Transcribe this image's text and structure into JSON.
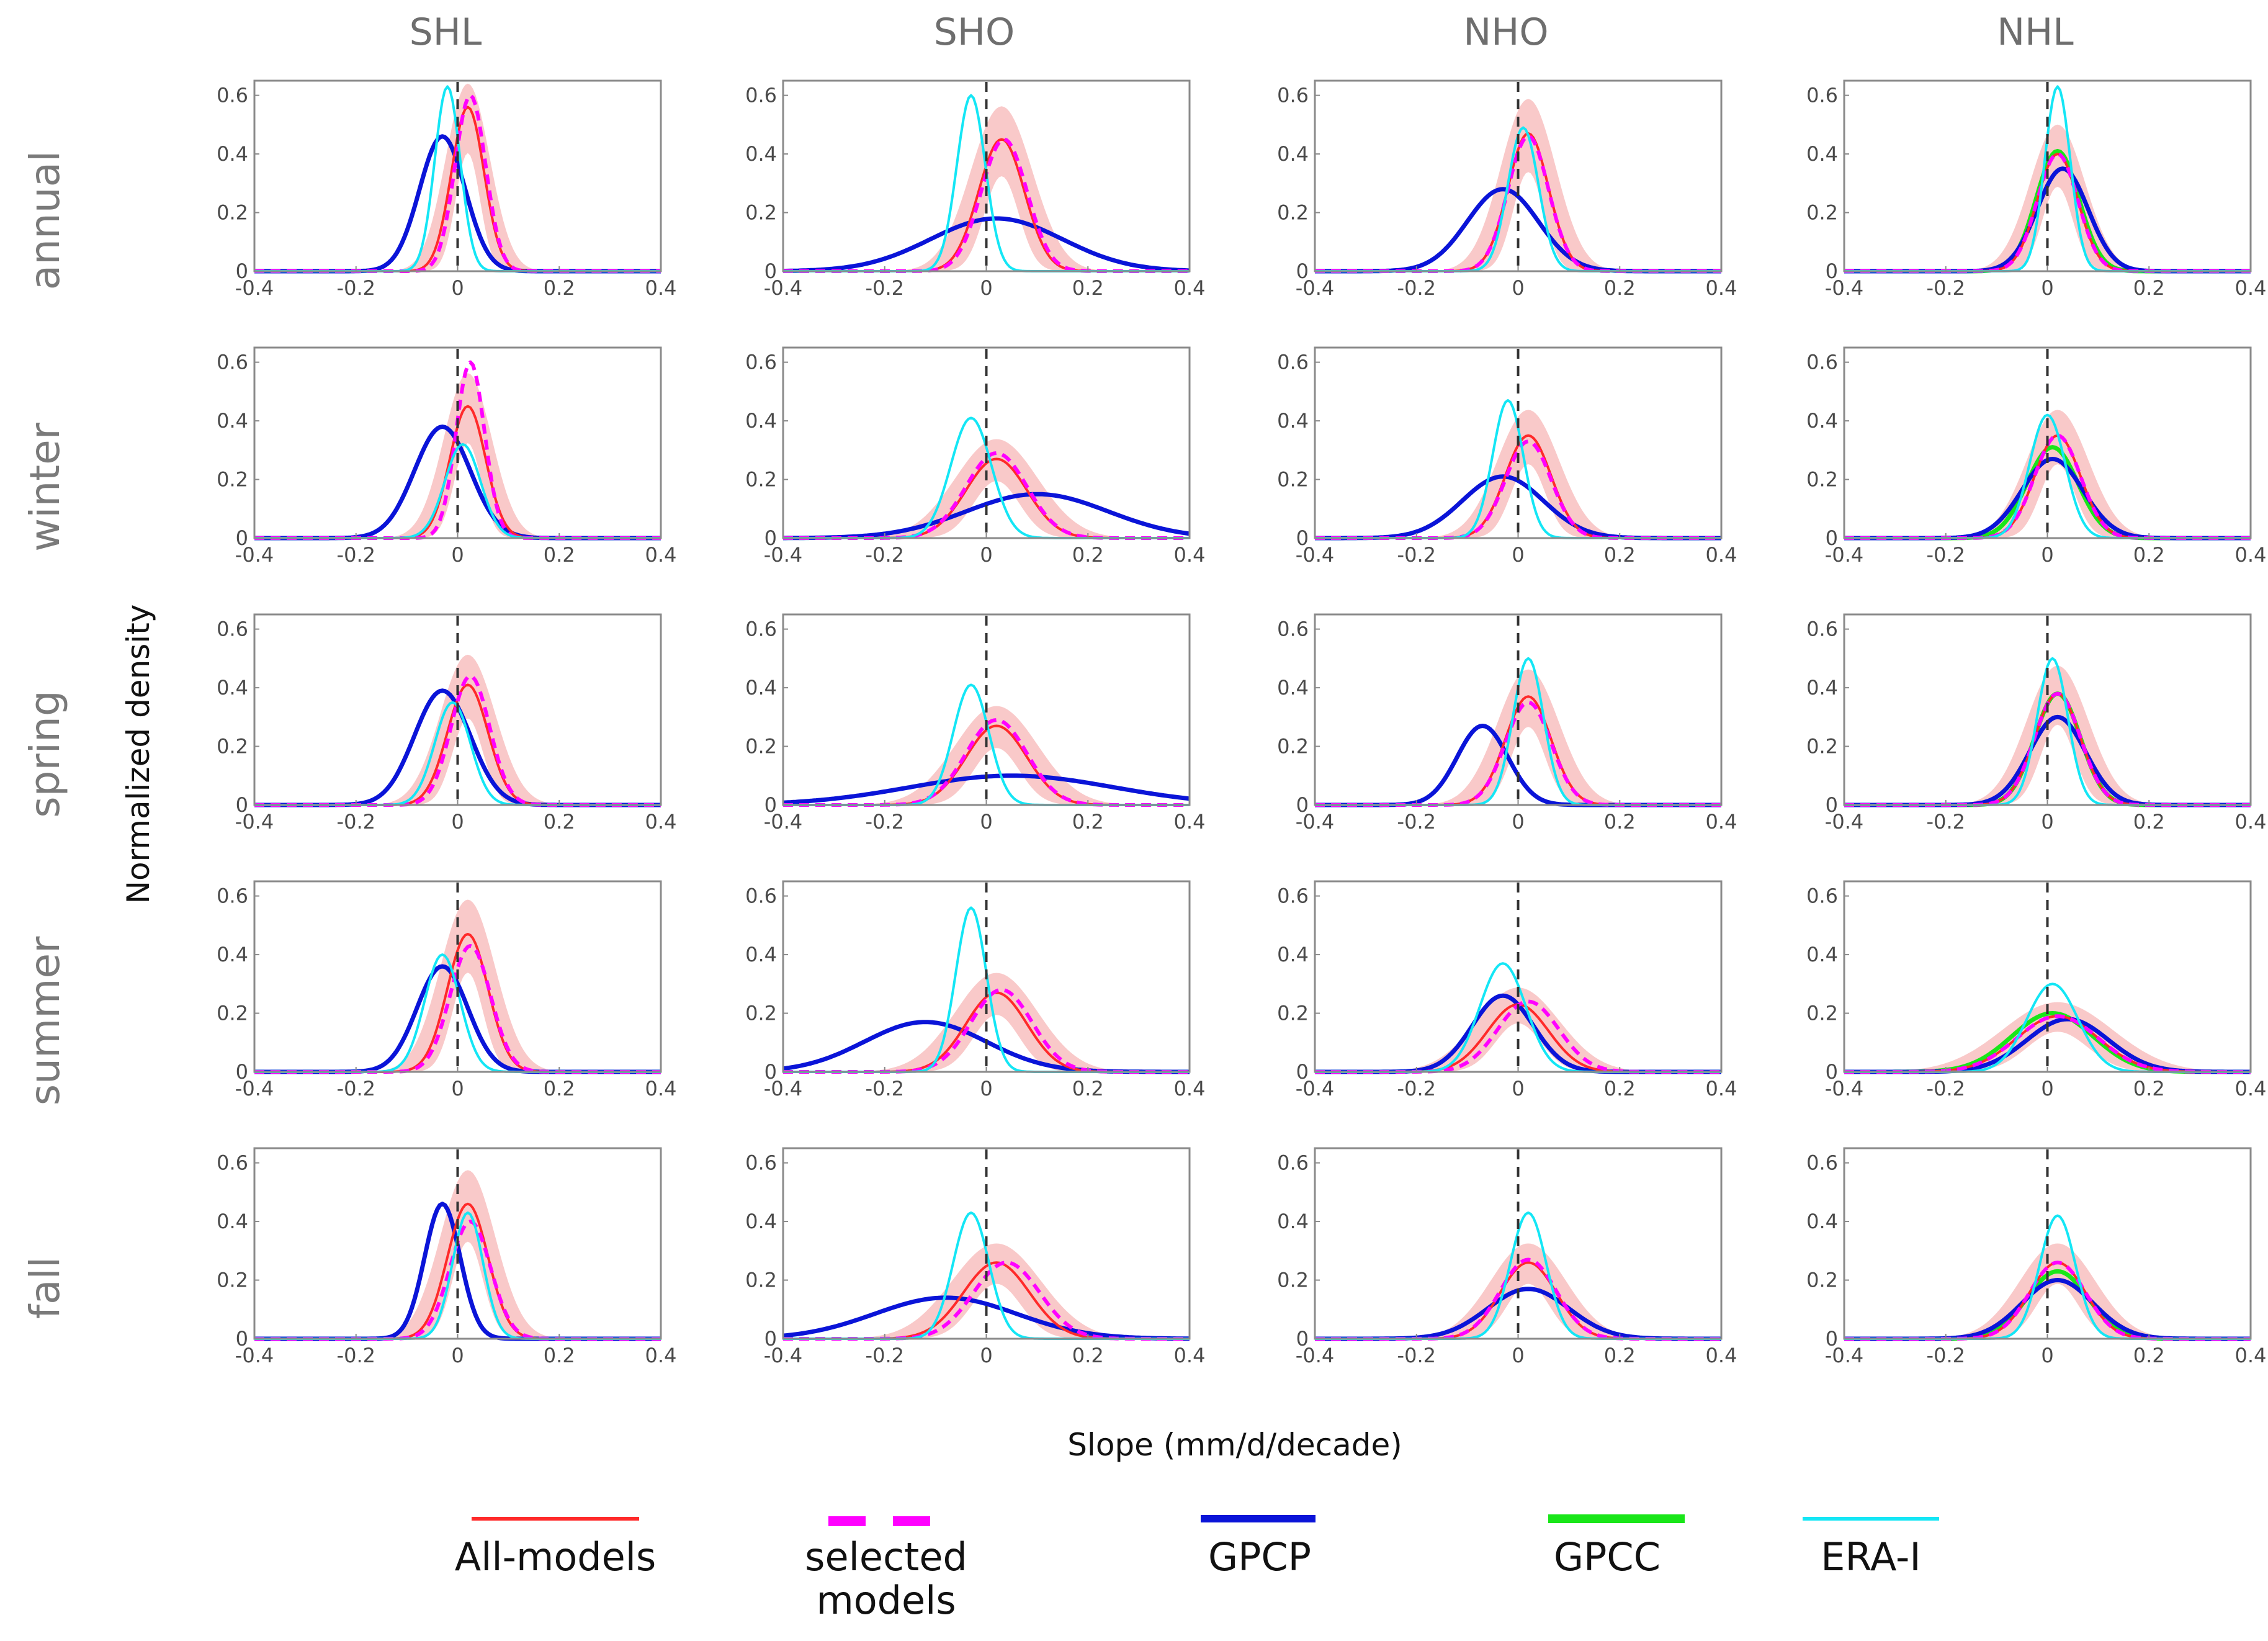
{
  "chart_data": {
    "type": "line",
    "columns": [
      "SHL",
      "SHO",
      "NHO",
      "NHL"
    ],
    "rows": [
      "annual",
      "winter",
      "spring",
      "summer",
      "fall"
    ],
    "xlabel": "Slope (mm/d/decade)",
    "ylabel": "Normalized density",
    "xlim": [
      -0.4,
      0.4
    ],
    "ylim": [
      0,
      0.65
    ],
    "xticks": [
      -0.4,
      -0.2,
      0,
      0.2,
      0.4
    ],
    "yticks": [
      0,
      0.2,
      0.4,
      0.6
    ],
    "xtick_labels": [
      "-0.4",
      "-0.2",
      "0",
      "0.2",
      "0.4"
    ],
    "ytick_labels": [
      "0",
      "0.2",
      "0.4",
      "0.6"
    ],
    "reference_line": {
      "x": 0,
      "style": "dashed"
    },
    "series_styles": [
      {
        "key": "all",
        "name": "All-models",
        "color": "#ff2a2a",
        "style": "solid"
      },
      {
        "key": "sel",
        "name": "selected models",
        "color": "#ff00ff",
        "style": "dashed"
      },
      {
        "key": "gpcp",
        "name": "GPCP",
        "color": "#0a14d8",
        "style": "solid"
      },
      {
        "key": "gpcc",
        "name": "GPCC",
        "color": "#19e619",
        "style": "solid"
      },
      {
        "key": "era",
        "name": "ERA-I",
        "color": "#14e6f5",
        "style": "solid"
      },
      {
        "key": "band",
        "name": "All-models spread",
        "color": "#f7b7b7",
        "style": "band"
      }
    ],
    "panels": [
      {
        "col": "SHL",
        "row": "annual",
        "series": [
          {
            "key": "all",
            "peak_x": 0.02,
            "peak": 0.56,
            "width": 0.032
          },
          {
            "key": "sel",
            "peak_x": 0.025,
            "peak": 0.6,
            "width": 0.03
          },
          {
            "key": "gpcp",
            "peak_x": -0.03,
            "peak": 0.46,
            "width": 0.045
          },
          {
            "key": "era",
            "peak_x": -0.02,
            "peak": 0.63,
            "width": 0.025
          }
        ]
      },
      {
        "col": "SHO",
        "row": "annual",
        "series": [
          {
            "key": "all",
            "peak_x": 0.03,
            "peak": 0.45,
            "width": 0.045
          },
          {
            "key": "sel",
            "peak_x": 0.035,
            "peak": 0.45,
            "width": 0.045
          },
          {
            "key": "gpcp",
            "peak_x": 0.02,
            "peak": 0.18,
            "width": 0.13
          },
          {
            "key": "era",
            "peak_x": -0.03,
            "peak": 0.6,
            "width": 0.028
          }
        ]
      },
      {
        "col": "NHO",
        "row": "annual",
        "series": [
          {
            "key": "all",
            "peak_x": 0.02,
            "peak": 0.47,
            "width": 0.04
          },
          {
            "key": "sel",
            "peak_x": 0.02,
            "peak": 0.46,
            "width": 0.04
          },
          {
            "key": "gpcp",
            "peak_x": -0.03,
            "peak": 0.28,
            "width": 0.07
          },
          {
            "key": "era",
            "peak_x": 0.01,
            "peak": 0.49,
            "width": 0.03
          }
        ]
      },
      {
        "col": "NHL",
        "row": "annual",
        "series": [
          {
            "key": "all",
            "peak_x": 0.02,
            "peak": 0.4,
            "width": 0.04
          },
          {
            "key": "sel",
            "peak_x": 0.02,
            "peak": 0.4,
            "width": 0.04
          },
          {
            "key": "gpcp",
            "peak_x": 0.03,
            "peak": 0.35,
            "width": 0.05
          },
          {
            "key": "gpcc",
            "peak_x": 0.02,
            "peak": 0.41,
            "width": 0.042
          },
          {
            "key": "era",
            "peak_x": 0.02,
            "peak": 0.63,
            "width": 0.025
          }
        ]
      },
      {
        "col": "SHL",
        "row": "winter",
        "series": [
          {
            "key": "all",
            "peak_x": 0.02,
            "peak": 0.45,
            "width": 0.035
          },
          {
            "key": "sel",
            "peak_x": 0.025,
            "peak": 0.6,
            "width": 0.028
          },
          {
            "key": "gpcp",
            "peak_x": -0.03,
            "peak": 0.38,
            "width": 0.055
          },
          {
            "key": "era",
            "peak_x": 0.01,
            "peak": 0.32,
            "width": 0.035
          }
        ]
      },
      {
        "col": "SHO",
        "row": "winter",
        "series": [
          {
            "key": "all",
            "peak_x": 0.02,
            "peak": 0.27,
            "width": 0.06
          },
          {
            "key": "sel",
            "peak_x": 0.02,
            "peak": 0.29,
            "width": 0.06
          },
          {
            "key": "gpcp",
            "peak_x": 0.1,
            "peak": 0.15,
            "width": 0.14
          },
          {
            "key": "era",
            "peak_x": -0.03,
            "peak": 0.41,
            "width": 0.04
          }
        ]
      },
      {
        "col": "NHO",
        "row": "winter",
        "series": [
          {
            "key": "all",
            "peak_x": 0.02,
            "peak": 0.35,
            "width": 0.045
          },
          {
            "key": "sel",
            "peak_x": 0.02,
            "peak": 0.33,
            "width": 0.045
          },
          {
            "key": "gpcp",
            "peak_x": -0.03,
            "peak": 0.21,
            "width": 0.08
          },
          {
            "key": "era",
            "peak_x": -0.02,
            "peak": 0.47,
            "width": 0.03
          }
        ]
      },
      {
        "col": "NHL",
        "row": "winter",
        "series": [
          {
            "key": "all",
            "peak_x": 0.02,
            "peak": 0.35,
            "width": 0.045
          },
          {
            "key": "sel",
            "peak_x": 0.02,
            "peak": 0.35,
            "width": 0.045
          },
          {
            "key": "gpcp",
            "peak_x": 0.01,
            "peak": 0.27,
            "width": 0.06
          },
          {
            "key": "gpcc",
            "peak_x": 0.01,
            "peak": 0.31,
            "width": 0.05
          },
          {
            "key": "era",
            "peak_x": 0.0,
            "peak": 0.42,
            "width": 0.035
          }
        ]
      },
      {
        "col": "SHL",
        "row": "spring",
        "series": [
          {
            "key": "all",
            "peak_x": 0.02,
            "peak": 0.41,
            "width": 0.04
          },
          {
            "key": "sel",
            "peak_x": 0.025,
            "peak": 0.44,
            "width": 0.038
          },
          {
            "key": "gpcp",
            "peak_x": -0.03,
            "peak": 0.39,
            "width": 0.055
          },
          {
            "key": "era",
            "peak_x": -0.01,
            "peak": 0.35,
            "width": 0.035
          }
        ]
      },
      {
        "col": "SHO",
        "row": "spring",
        "series": [
          {
            "key": "all",
            "peak_x": 0.02,
            "peak": 0.27,
            "width": 0.06
          },
          {
            "key": "sel",
            "peak_x": 0.02,
            "peak": 0.29,
            "width": 0.06
          },
          {
            "key": "gpcp",
            "peak_x": 0.05,
            "peak": 0.1,
            "width": 0.2
          },
          {
            "key": "era",
            "peak_x": -0.03,
            "peak": 0.41,
            "width": 0.035
          }
        ]
      },
      {
        "col": "NHO",
        "row": "spring",
        "series": [
          {
            "key": "all",
            "peak_x": 0.02,
            "peak": 0.37,
            "width": 0.045
          },
          {
            "key": "sel",
            "peak_x": 0.02,
            "peak": 0.35,
            "width": 0.045
          },
          {
            "key": "gpcp",
            "peak_x": -0.07,
            "peak": 0.27,
            "width": 0.05
          },
          {
            "key": "era",
            "peak_x": 0.02,
            "peak": 0.5,
            "width": 0.03
          }
        ]
      },
      {
        "col": "NHL",
        "row": "spring",
        "series": [
          {
            "key": "all",
            "peak_x": 0.02,
            "peak": 0.38,
            "width": 0.045
          },
          {
            "key": "sel",
            "peak_x": 0.02,
            "peak": 0.38,
            "width": 0.045
          },
          {
            "key": "gpcp",
            "peak_x": 0.02,
            "peak": 0.3,
            "width": 0.055
          },
          {
            "key": "gpcc",
            "peak_x": 0.02,
            "peak": 0.38,
            "width": 0.045
          },
          {
            "key": "era",
            "peak_x": 0.01,
            "peak": 0.5,
            "width": 0.03
          }
        ]
      },
      {
        "col": "SHL",
        "row": "summer",
        "series": [
          {
            "key": "all",
            "peak_x": 0.02,
            "peak": 0.47,
            "width": 0.04
          },
          {
            "key": "sel",
            "peak_x": 0.025,
            "peak": 0.43,
            "width": 0.04
          },
          {
            "key": "gpcp",
            "peak_x": -0.03,
            "peak": 0.36,
            "width": 0.05
          },
          {
            "key": "era",
            "peak_x": -0.03,
            "peak": 0.4,
            "width": 0.035
          }
        ]
      },
      {
        "col": "SHO",
        "row": "summer",
        "series": [
          {
            "key": "all",
            "peak_x": 0.02,
            "peak": 0.27,
            "width": 0.06
          },
          {
            "key": "sel",
            "peak_x": 0.03,
            "peak": 0.28,
            "width": 0.06
          },
          {
            "key": "gpcp",
            "peak_x": -0.12,
            "peak": 0.17,
            "width": 0.12
          },
          {
            "key": "era",
            "peak_x": -0.03,
            "peak": 0.56,
            "width": 0.03
          }
        ]
      },
      {
        "col": "NHO",
        "row": "summer",
        "series": [
          {
            "key": "all",
            "peak_x": 0.0,
            "peak": 0.23,
            "width": 0.06
          },
          {
            "key": "sel",
            "peak_x": 0.02,
            "peak": 0.24,
            "width": 0.06
          },
          {
            "key": "gpcp",
            "peak_x": -0.03,
            "peak": 0.26,
            "width": 0.06
          },
          {
            "key": "era",
            "peak_x": -0.03,
            "peak": 0.37,
            "width": 0.045
          }
        ]
      },
      {
        "col": "NHL",
        "row": "summer",
        "series": [
          {
            "key": "all",
            "peak_x": 0.02,
            "peak": 0.19,
            "width": 0.08
          },
          {
            "key": "sel",
            "peak_x": 0.02,
            "peak": 0.19,
            "width": 0.08
          },
          {
            "key": "gpcp",
            "peak_x": 0.04,
            "peak": 0.18,
            "width": 0.08
          },
          {
            "key": "gpcc",
            "peak_x": 0.01,
            "peak": 0.2,
            "width": 0.08
          },
          {
            "key": "era",
            "peak_x": 0.01,
            "peak": 0.3,
            "width": 0.05
          }
        ]
      },
      {
        "col": "SHL",
        "row": "fall",
        "series": [
          {
            "key": "all",
            "peak_x": 0.02,
            "peak": 0.46,
            "width": 0.04
          },
          {
            "key": "sel",
            "peak_x": 0.025,
            "peak": 0.4,
            "width": 0.04
          },
          {
            "key": "gpcp",
            "peak_x": -0.03,
            "peak": 0.46,
            "width": 0.035
          },
          {
            "key": "era",
            "peak_x": 0.02,
            "peak": 0.43,
            "width": 0.03
          }
        ]
      },
      {
        "col": "SHO",
        "row": "fall",
        "series": [
          {
            "key": "all",
            "peak_x": 0.02,
            "peak": 0.26,
            "width": 0.065
          },
          {
            "key": "sel",
            "peak_x": 0.04,
            "peak": 0.26,
            "width": 0.065
          },
          {
            "key": "gpcp",
            "peak_x": -0.08,
            "peak": 0.14,
            "width": 0.14
          },
          {
            "key": "era",
            "peak_x": -0.03,
            "peak": 0.43,
            "width": 0.035
          }
        ]
      },
      {
        "col": "NHO",
        "row": "fall",
        "series": [
          {
            "key": "all",
            "peak_x": 0.02,
            "peak": 0.26,
            "width": 0.055
          },
          {
            "key": "sel",
            "peak_x": 0.02,
            "peak": 0.27,
            "width": 0.055
          },
          {
            "key": "gpcp",
            "peak_x": 0.02,
            "peak": 0.17,
            "width": 0.08
          },
          {
            "key": "era",
            "peak_x": 0.02,
            "peak": 0.43,
            "width": 0.035
          }
        ]
      },
      {
        "col": "NHL",
        "row": "fall",
        "series": [
          {
            "key": "all",
            "peak_x": 0.02,
            "peak": 0.26,
            "width": 0.055
          },
          {
            "key": "sel",
            "peak_x": 0.02,
            "peak": 0.26,
            "width": 0.055
          },
          {
            "key": "gpcp",
            "peak_x": 0.02,
            "peak": 0.2,
            "width": 0.07
          },
          {
            "key": "gpcc",
            "peak_x": 0.02,
            "peak": 0.23,
            "width": 0.06
          },
          {
            "key": "era",
            "peak_x": 0.02,
            "peak": 0.42,
            "width": 0.035
          }
        ]
      }
    ]
  },
  "legend": {
    "items": [
      {
        "key": "all",
        "label": "All-models",
        "color": "#ff2a2a"
      },
      {
        "key": "sel",
        "label": "selected models",
        "line1": "selected",
        "line2": "models",
        "color": "#ff00ff"
      },
      {
        "key": "gpcp",
        "label": "GPCP",
        "color": "#0a14d8"
      },
      {
        "key": "gpcc",
        "label": "GPCC",
        "color": "#19e619"
      },
      {
        "key": "era",
        "label": "ERA-I",
        "color": "#14e6f5"
      }
    ]
  }
}
